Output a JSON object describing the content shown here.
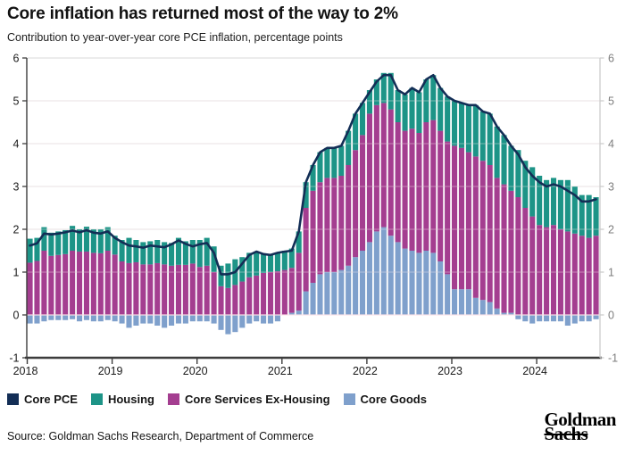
{
  "header": {
    "title": "Core inflation has returned most of the way to 2%",
    "subtitle": "Contribution to year-over-year core PCE inflation, percentage points"
  },
  "chart_data": {
    "type": "bar",
    "stacked": true,
    "overlay": "line",
    "title": "Core inflation has returned most of the way to 2%",
    "subtitle": "Contribution to year-over-year core PCE inflation, percentage points",
    "ylabel": "percentage points",
    "ylim": [
      -1,
      6
    ],
    "grid": true,
    "legend_position": "bottom",
    "yticks": [
      6,
      5,
      4,
      3,
      2,
      1,
      0,
      -1
    ],
    "xticks": [
      {
        "label": "2018",
        "month_index": 0
      },
      {
        "label": "2019",
        "month_index": 12
      },
      {
        "label": "2020",
        "month_index": 24
      },
      {
        "label": "2021",
        "month_index": 36
      },
      {
        "label": "2022",
        "month_index": 48
      },
      {
        "label": "2023",
        "month_index": 60
      },
      {
        "label": "2024",
        "month_index": 72
      }
    ],
    "months": [
      "2018-01",
      "2018-02",
      "2018-03",
      "2018-04",
      "2018-05",
      "2018-06",
      "2018-07",
      "2018-08",
      "2018-09",
      "2018-10",
      "2018-11",
      "2018-12",
      "2019-01",
      "2019-02",
      "2019-03",
      "2019-04",
      "2019-05",
      "2019-06",
      "2019-07",
      "2019-08",
      "2019-09",
      "2019-10",
      "2019-11",
      "2019-12",
      "2020-01",
      "2020-02",
      "2020-03",
      "2020-04",
      "2020-05",
      "2020-06",
      "2020-07",
      "2020-08",
      "2020-09",
      "2020-10",
      "2020-11",
      "2020-12",
      "2021-01",
      "2021-02",
      "2021-03",
      "2021-04",
      "2021-05",
      "2021-06",
      "2021-07",
      "2021-08",
      "2021-09",
      "2021-10",
      "2021-11",
      "2021-12",
      "2022-01",
      "2022-02",
      "2022-03",
      "2022-04",
      "2022-05",
      "2022-06",
      "2022-07",
      "2022-08",
      "2022-09",
      "2022-10",
      "2022-11",
      "2022-12",
      "2023-01",
      "2023-02",
      "2023-03",
      "2023-04",
      "2023-05",
      "2023-06",
      "2023-07",
      "2023-08",
      "2023-09",
      "2023-10",
      "2023-11",
      "2023-12",
      "2024-01",
      "2024-02",
      "2024-03",
      "2024-04",
      "2024-05",
      "2024-06",
      "2024-07",
      "2024-08",
      "2024-09"
    ],
    "series": [
      {
        "name": "Core Goods",
        "color": "#7fa0cc",
        "values": [
          -0.2,
          -0.2,
          -0.15,
          -0.12,
          -0.12,
          -0.12,
          -0.1,
          -0.15,
          -0.12,
          -0.15,
          -0.15,
          -0.12,
          -0.15,
          -0.2,
          -0.3,
          -0.25,
          -0.2,
          -0.2,
          -0.25,
          -0.3,
          -0.25,
          -0.2,
          -0.2,
          -0.15,
          -0.15,
          -0.15,
          -0.2,
          -0.35,
          -0.45,
          -0.4,
          -0.3,
          -0.2,
          -0.15,
          -0.2,
          -0.2,
          -0.15,
          0.0,
          0.05,
          0.1,
          0.55,
          0.75,
          0.95,
          1.0,
          1.0,
          1.05,
          1.15,
          1.35,
          1.5,
          1.7,
          1.95,
          2.05,
          1.85,
          1.7,
          1.55,
          1.5,
          1.45,
          1.5,
          1.45,
          1.25,
          0.95,
          0.6,
          0.6,
          0.6,
          0.4,
          0.35,
          0.3,
          0.15,
          0.05,
          0.05,
          -0.1,
          -0.15,
          -0.2,
          -0.15,
          -0.15,
          -0.15,
          -0.15,
          -0.25,
          -0.2,
          -0.15,
          -0.15,
          -0.1
        ]
      },
      {
        "name": "Core Services Ex-Housing",
        "color": "#a43e90",
        "values": [
          1.22,
          1.26,
          1.5,
          1.38,
          1.4,
          1.42,
          1.5,
          1.48,
          1.48,
          1.45,
          1.44,
          1.5,
          1.41,
          1.25,
          1.21,
          1.23,
          1.18,
          1.18,
          1.21,
          1.18,
          1.15,
          1.17,
          1.17,
          1.2,
          1.12,
          1.15,
          1.0,
          0.67,
          0.63,
          0.7,
          0.78,
          0.88,
          0.92,
          0.98,
          1.0,
          1.02,
          1.05,
          1.05,
          1.35,
          1.95,
          2.15,
          2.15,
          2.2,
          2.2,
          2.2,
          2.35,
          2.5,
          2.7,
          3.0,
          2.95,
          2.9,
          2.95,
          2.8,
          2.75,
          2.85,
          2.8,
          3.0,
          3.1,
          3.05,
          3.1,
          3.35,
          3.3,
          3.2,
          3.3,
          3.25,
          3.2,
          3.05,
          3.0,
          2.85,
          2.75,
          2.5,
          2.3,
          2.1,
          2.05,
          2.1,
          2.0,
          1.95,
          1.9,
          1.85,
          1.8,
          1.85
        ]
      },
      {
        "name": "Housing",
        "color": "#1d9487",
        "values": [
          0.56,
          0.54,
          0.55,
          0.54,
          0.55,
          0.56,
          0.58,
          0.52,
          0.58,
          0.55,
          0.56,
          0.55,
          0.44,
          0.5,
          0.59,
          0.52,
          0.52,
          0.54,
          0.54,
          0.52,
          0.53,
          0.63,
          0.55,
          0.55,
          0.63,
          0.65,
          0.6,
          0.48,
          0.57,
          0.6,
          0.57,
          0.57,
          0.55,
          0.45,
          0.42,
          0.43,
          0.45,
          0.45,
          0.5,
          0.6,
          0.6,
          0.7,
          0.7,
          0.7,
          0.7,
          0.8,
          0.85,
          0.75,
          0.55,
          0.6,
          0.7,
          0.85,
          0.75,
          0.85,
          0.95,
          0.95,
          1.0,
          1.05,
          1.0,
          1.05,
          1.05,
          1.05,
          1.1,
          1.2,
          1.15,
          1.2,
          1.2,
          1.15,
          1.05,
          1.1,
          1.1,
          1.15,
          1.15,
          1.1,
          1.1,
          1.15,
          1.2,
          1.1,
          0.95,
          1.0,
          0.9
        ]
      }
    ],
    "line": {
      "name": "Core PCE",
      "color": "#132e56",
      "values": [
        1.62,
        1.67,
        1.9,
        1.88,
        1.9,
        1.93,
        1.97,
        1.93,
        1.98,
        1.92,
        1.9,
        1.95,
        1.8,
        1.7,
        1.62,
        1.6,
        1.57,
        1.62,
        1.6,
        1.58,
        1.65,
        1.74,
        1.66,
        1.6,
        1.65,
        1.68,
        1.45,
        0.95,
        0.95,
        1.0,
        1.2,
        1.4,
        1.48,
        1.42,
        1.4,
        1.45,
        1.48,
        1.5,
        1.95,
        3.1,
        3.5,
        3.8,
        3.9,
        3.9,
        3.95,
        4.3,
        4.7,
        4.95,
        5.2,
        5.45,
        5.6,
        5.6,
        5.25,
        5.15,
        5.3,
        5.2,
        5.5,
        5.6,
        5.3,
        5.1,
        5.0,
        4.95,
        4.9,
        4.9,
        4.75,
        4.7,
        4.4,
        4.2,
        3.95,
        3.75,
        3.45,
        3.25,
        3.1,
        3.0,
        3.05,
        3.0,
        2.9,
        2.8,
        2.65,
        2.65,
        2.7
      ]
    }
  },
  "legend": {
    "items": [
      {
        "label": "Core PCE",
        "color": "#132e56"
      },
      {
        "label": "Housing",
        "color": "#1d9487"
      },
      {
        "label": "Core Services Ex-Housing",
        "color": "#a43e90"
      },
      {
        "label": "Core Goods",
        "color": "#7fa0cc"
      }
    ]
  },
  "footer": {
    "source": "Source: Goldman Sachs Research, Department of Commerce",
    "logo_line1": "Goldman",
    "logo_line2": "Sachs"
  },
  "style": {
    "grid_color": "#d9d9d9",
    "axis_color": "#3d3d3d",
    "right_axis_color": "#c9c9c9",
    "left_tick_label_color": "#1a1a1a",
    "right_tick_label_color": "#7d7d7d"
  }
}
